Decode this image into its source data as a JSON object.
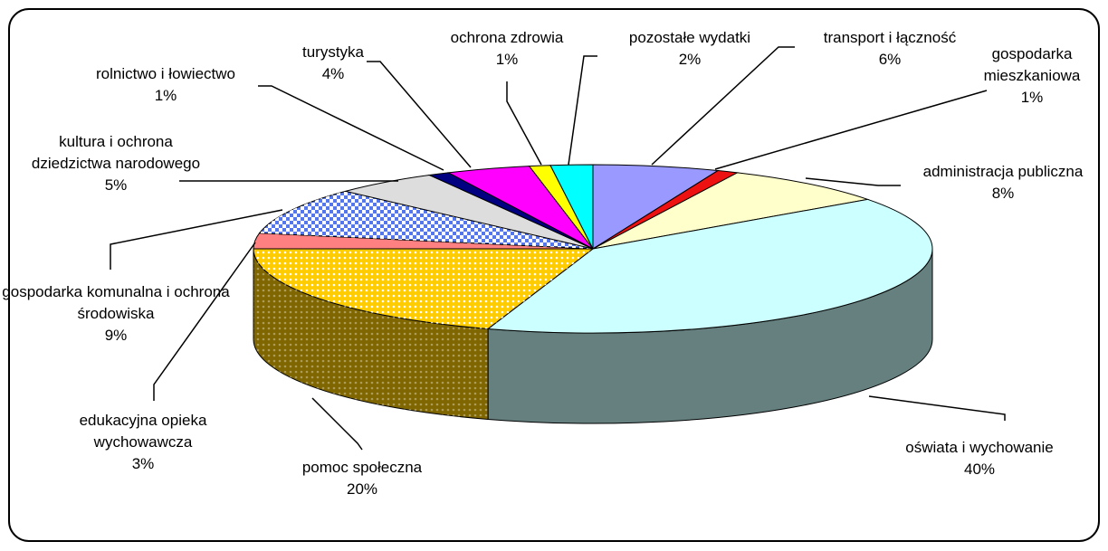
{
  "chart_data": {
    "type": "pie",
    "categories": [
      "transport i łączność",
      "gospodarka mieszkaniowa",
      "administracja publiczna",
      "oświata i wychowanie",
      "pomoc społeczna",
      "edukacyjna opieka wychowawcza",
      "gospodarka komunalna i ochrona środowiska",
      "kultura i ochrona dziedzictwa narodowego",
      "rolnictwo i łowiectwo",
      "turystyka",
      "ochrona zdrowia",
      "pozostałe wydatki"
    ],
    "values": [
      6,
      1,
      8,
      40,
      20,
      3,
      9,
      5,
      1,
      4,
      1,
      2
    ],
    "value_labels": [
      "6%",
      "1%",
      "8%",
      "40%",
      "20%",
      "3%",
      "9%",
      "5%",
      "1%",
      "4%",
      "1%",
      "2%"
    ],
    "colors": [
      "#9999ff",
      "#ee1111",
      "#ffffcc",
      "#ccffff",
      "#ffcc00",
      "#ff8080",
      "#5577ee",
      "#dddddd",
      "#000080",
      "#ff00ff",
      "#ffff00",
      "#00ffff"
    ]
  }
}
